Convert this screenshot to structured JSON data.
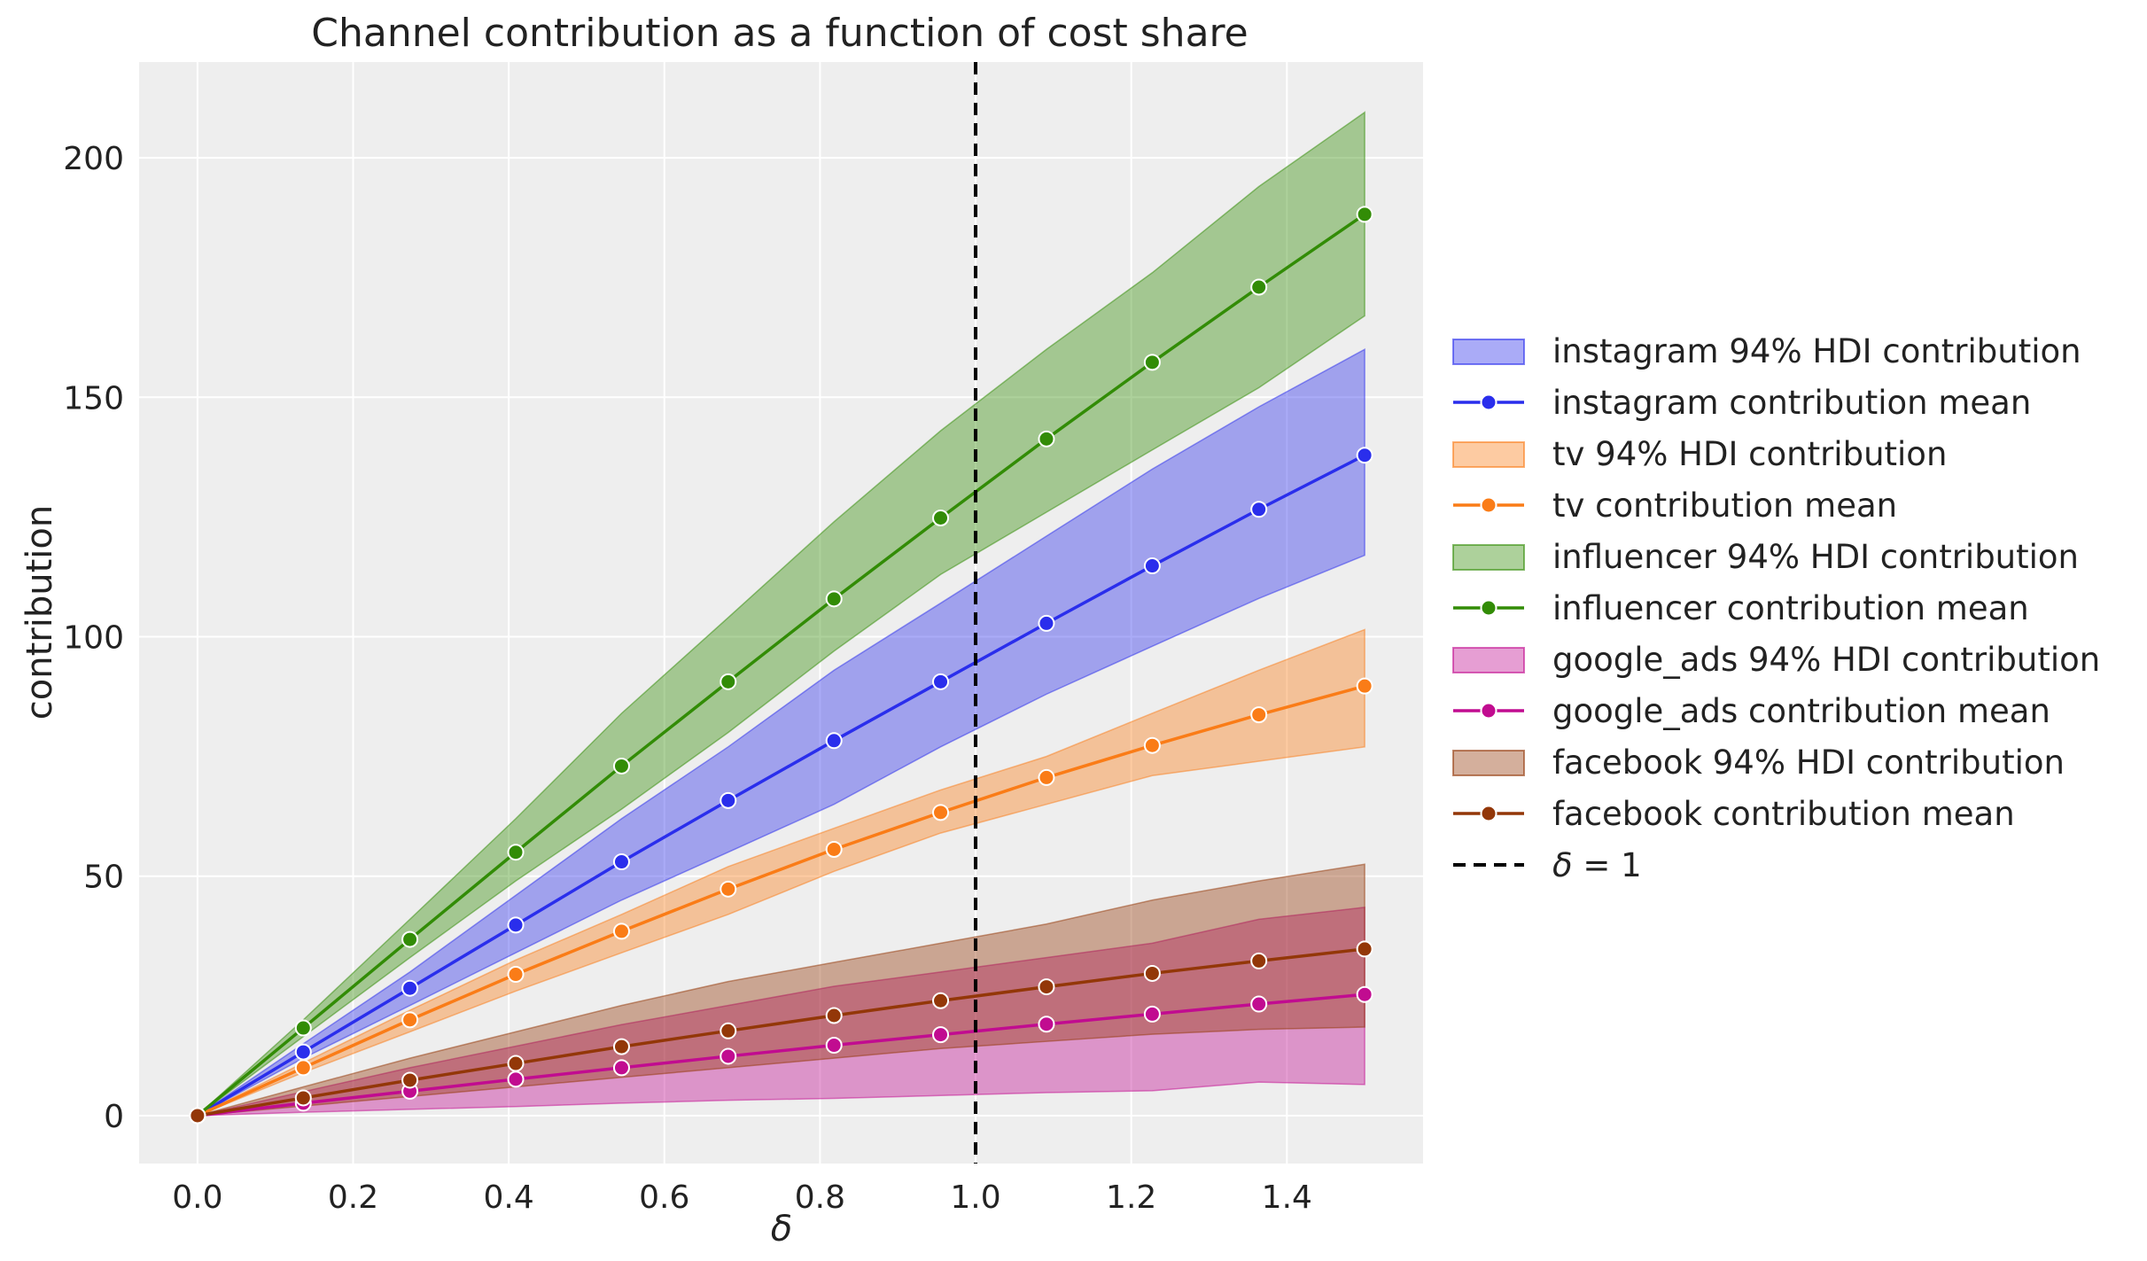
{
  "chart_data": {
    "type": "line",
    "title": "Channel contribution as a function of cost share",
    "xlabel": "δ",
    "ylabel": "contribution",
    "xlim": [
      -0.075,
      1.575
    ],
    "ylim": [
      -10,
      220
    ],
    "x_ticks": [
      0.0,
      0.2,
      0.4,
      0.6,
      0.8,
      1.0,
      1.2,
      1.4
    ],
    "x_tick_labels": [
      "0.0",
      "0.2",
      "0.4",
      "0.6",
      "0.8",
      "1.0",
      "1.2",
      "1.4"
    ],
    "y_ticks": [
      0,
      50,
      100,
      150,
      200
    ],
    "y_tick_labels": [
      "0",
      "50",
      "100",
      "150",
      "200"
    ],
    "grid": true,
    "legend_position": "right",
    "x": [
      0.0,
      0.136,
      0.273,
      0.409,
      0.545,
      0.682,
      0.818,
      0.955,
      1.091,
      1.227,
      1.364,
      1.5
    ],
    "series": [
      {
        "channel": "instagram",
        "color": "#2a2eec",
        "band_label": "instagram 94% HDI contribution",
        "mean_label": "instagram contribution mean",
        "mean": [
          0,
          13.3,
          26.6,
          39.8,
          53.0,
          65.8,
          78.3,
          90.6,
          102.8,
          114.8,
          126.6,
          137.9
        ],
        "hdi_low": [
          0,
          12,
          23,
          34,
          45,
          55,
          65,
          77,
          88,
          98,
          108,
          117
        ],
        "hdi_high": [
          0,
          15,
          30,
          46,
          62,
          77,
          93,
          107,
          121,
          135,
          148,
          160
        ]
      },
      {
        "channel": "tv",
        "color": "#fa7c17",
        "band_label": "tv 94% HDI contribution",
        "mean_label": "tv contribution mean",
        "mean": [
          0,
          10.0,
          20.0,
          29.5,
          38.5,
          47.3,
          55.6,
          63.3,
          70.6,
          77.3,
          83.7,
          89.7
        ],
        "hdi_low": [
          0,
          9,
          17.5,
          26,
          34,
          42,
          51,
          59,
          65,
          71,
          74,
          77
        ],
        "hdi_high": [
          0,
          11,
          22,
          32.5,
          42,
          52,
          60,
          68,
          75,
          84,
          93,
          101.5
        ]
      },
      {
        "channel": "influencer",
        "color": "#328c06",
        "band_label": "influencer 94% HDI contribution",
        "mean_label": "influencer contribution mean",
        "mean": [
          0,
          18.3,
          36.8,
          55.0,
          73.0,
          90.6,
          107.9,
          124.8,
          141.3,
          157.3,
          173.0,
          188.2
        ],
        "hdi_low": [
          0,
          16.5,
          33,
          49,
          64,
          80,
          97,
          113,
          126,
          139,
          152,
          167
        ],
        "hdi_high": [
          0,
          20,
          41,
          62,
          84,
          104,
          124,
          143,
          160,
          176,
          194,
          209.5
        ]
      },
      {
        "channel": "google_ads",
        "color": "#c10c90",
        "band_label": "google_ads 94% HDI contribution",
        "mean_label": "google_ads contribution mean",
        "mean": [
          0,
          2.6,
          5.1,
          7.6,
          10.0,
          12.4,
          14.7,
          16.9,
          19.1,
          21.2,
          23.3,
          25.3
        ],
        "hdi_low": [
          0,
          0.7,
          1.3,
          1.9,
          2.6,
          3.2,
          3.6,
          4.2,
          4.8,
          5.2,
          7,
          6.5
        ],
        "hdi_high": [
          0,
          5,
          10,
          14.5,
          19,
          23,
          27,
          30,
          33,
          36,
          41,
          43.5
        ]
      },
      {
        "channel": "facebook",
        "color": "#933708",
        "band_label": "facebook 94% HDI contribution",
        "mean_label": "facebook contribution mean",
        "mean": [
          0,
          3.7,
          7.4,
          10.9,
          14.4,
          17.7,
          20.9,
          24.0,
          26.9,
          29.7,
          32.3,
          34.8
        ],
        "hdi_low": [
          0,
          2,
          4,
          6,
          8,
          10,
          12,
          14,
          15.5,
          17,
          18,
          18.5
        ],
        "hdi_high": [
          0,
          6,
          12,
          17.5,
          23,
          28,
          32,
          36,
          40,
          45,
          49,
          52.5
        ]
      }
    ],
    "reference_line": {
      "x": 1.0,
      "label": "δ = 1",
      "label_italic": "δ",
      "label_rest": " = 1",
      "style": "dashed",
      "color": "#000000"
    }
  },
  "colors": {
    "plot_background": "#eeeeee",
    "grid": "#ffffff",
    "band_opacity": 0.4
  }
}
